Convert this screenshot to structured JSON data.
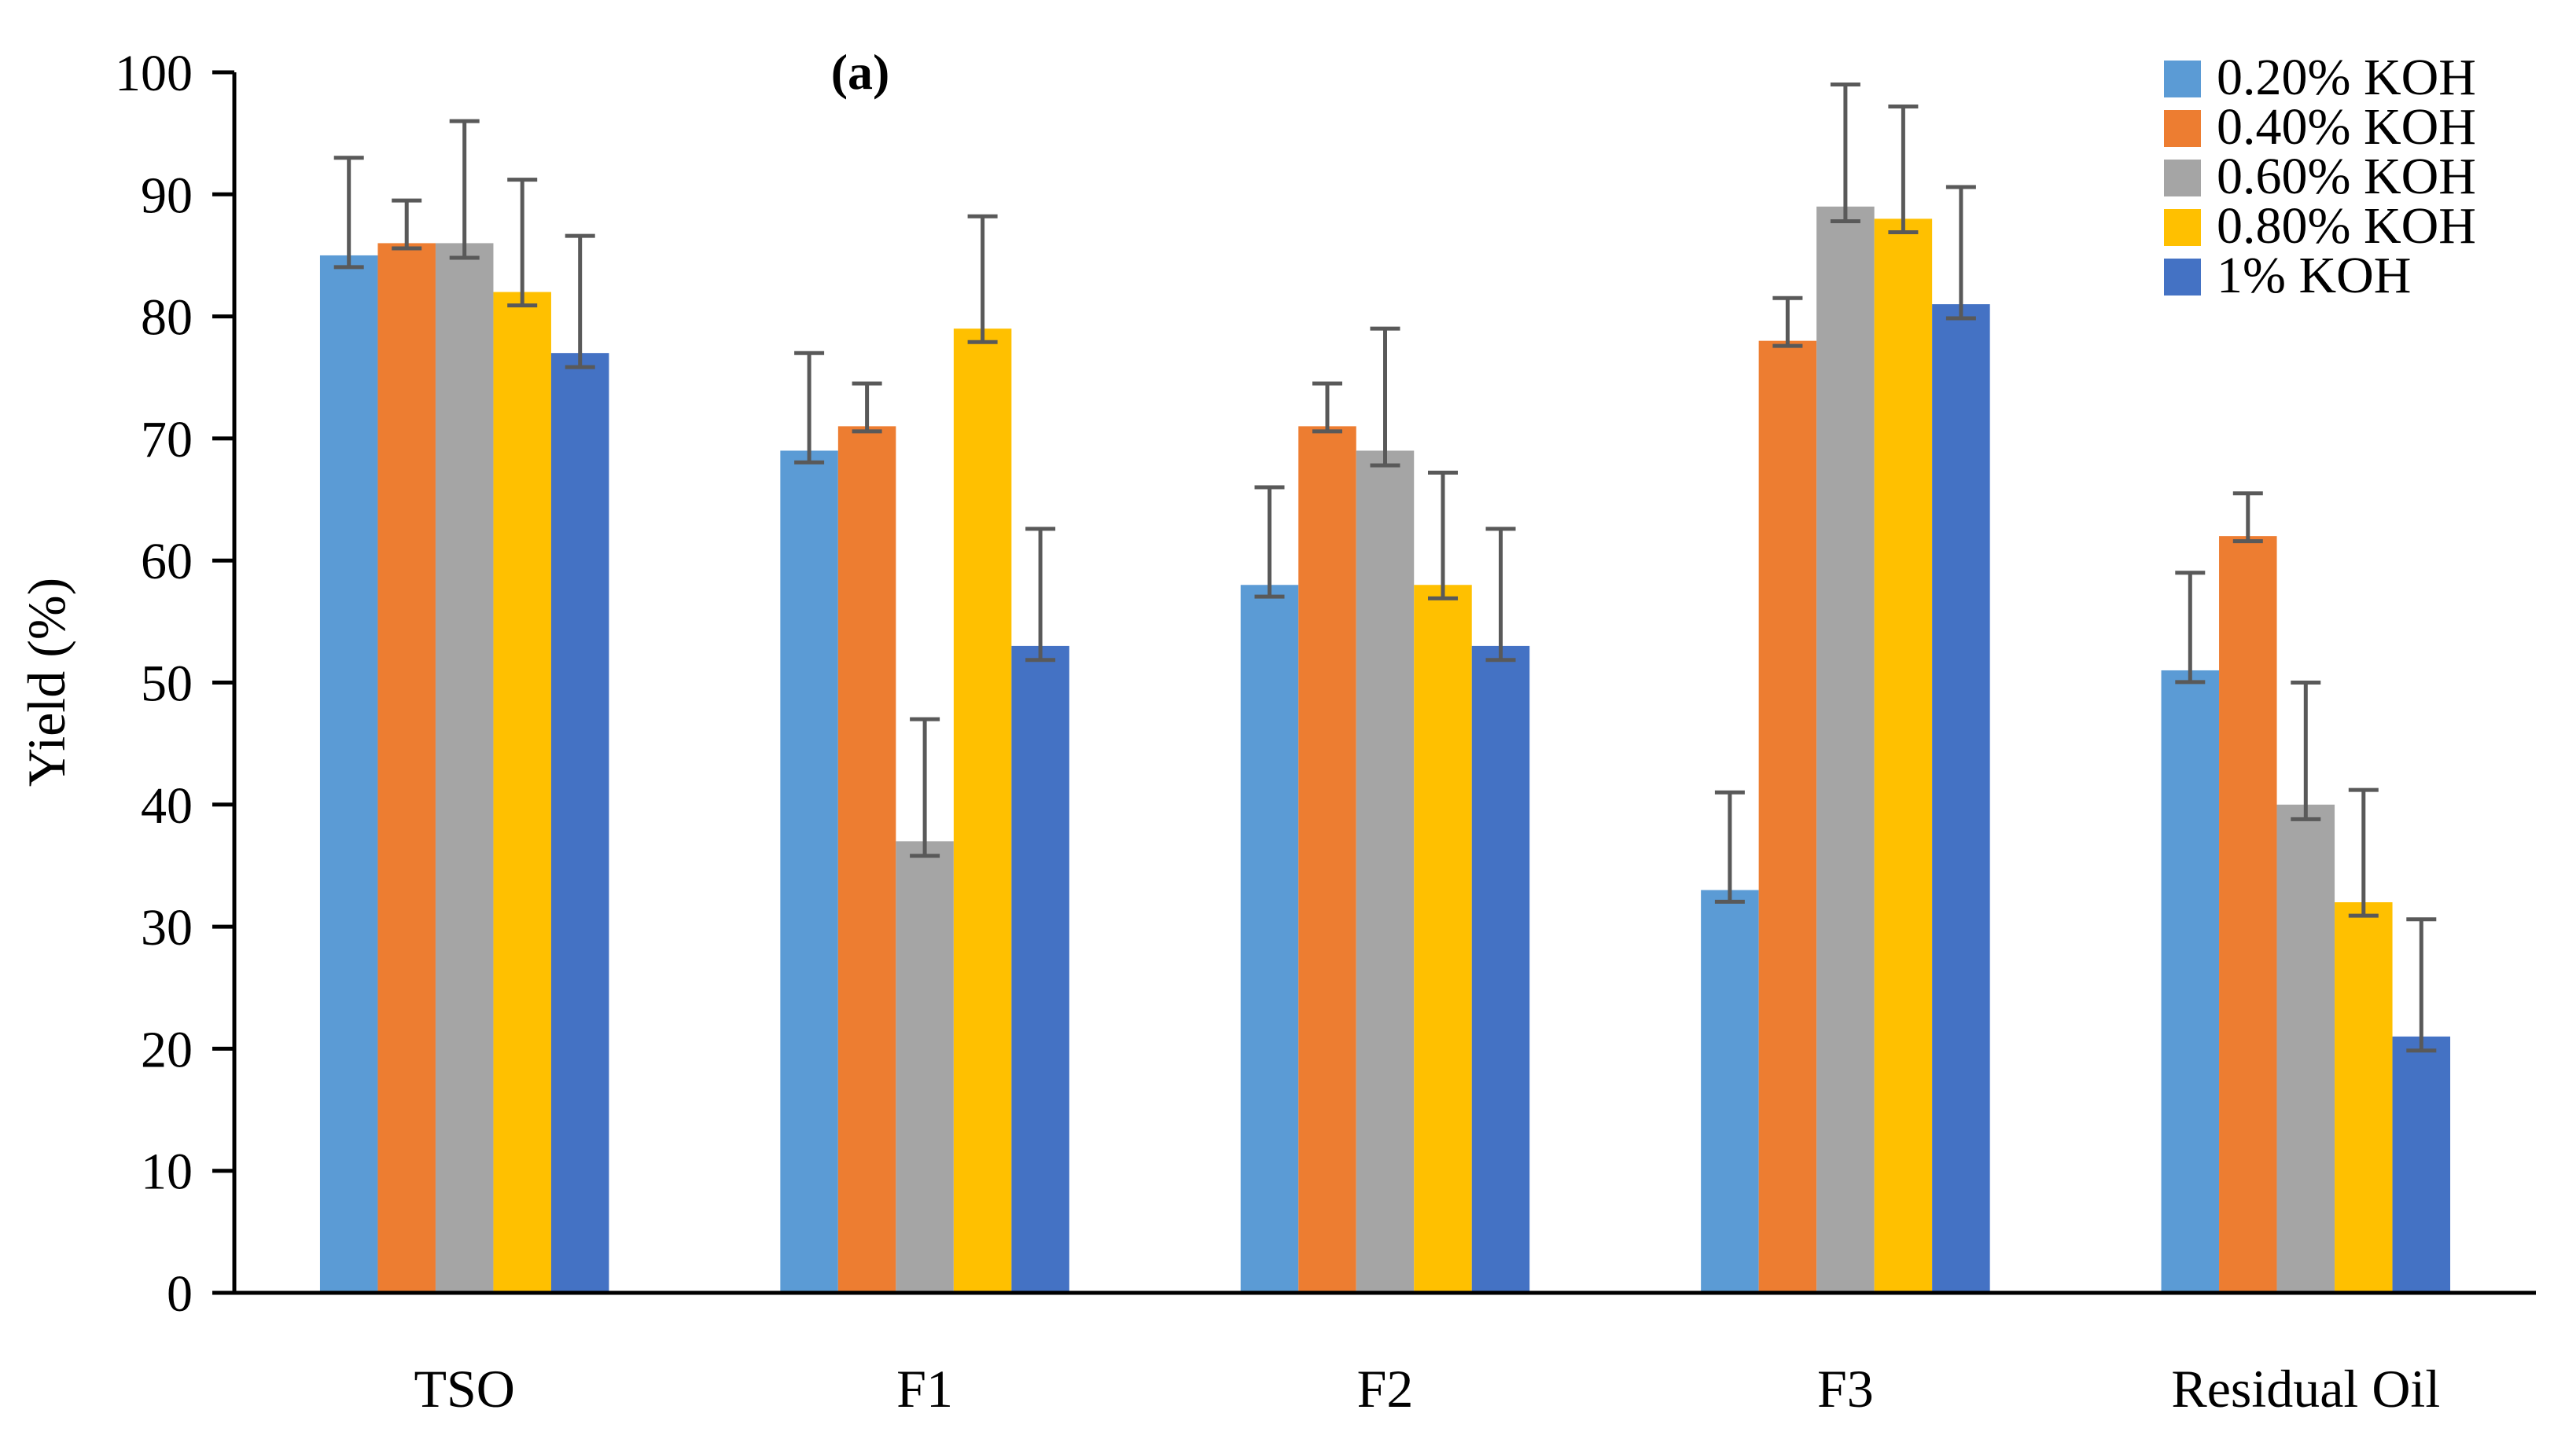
{
  "chart_data": {
    "type": "bar",
    "title": "",
    "panel_label": "(a)",
    "xlabel": "",
    "ylabel": "Yield (%)",
    "ylim": [
      0,
      100
    ],
    "yticks": [
      0,
      10,
      20,
      30,
      40,
      50,
      60,
      70,
      80,
      90,
      100
    ],
    "grid": false,
    "legend_position": "top-right",
    "categories": [
      "TSO",
      "F1",
      "F2",
      "F3",
      "Residual Oil"
    ],
    "series": [
      {
        "name": "0.20% KOH",
        "color": "#5B9BD5",
        "values": [
          85,
          69,
          58,
          33,
          51
        ],
        "errors": [
          8,
          8,
          8,
          8,
          8
        ]
      },
      {
        "name": "0.40% KOH",
        "color": "#ED7D31",
        "values": [
          86,
          71,
          71,
          78,
          62
        ],
        "errors": [
          3.5,
          3.5,
          3.5,
          3.5,
          3.5
        ]
      },
      {
        "name": "0.60% KOH",
        "color": "#A5A5A5",
        "values": [
          86,
          37,
          69,
          89,
          40
        ],
        "errors": [
          10,
          10,
          10,
          10,
          10
        ]
      },
      {
        "name": "0.80% KOH",
        "color": "#FFC000",
        "values": [
          82,
          79,
          58,
          88,
          32
        ],
        "errors": [
          9.2,
          9.2,
          9.2,
          9.2,
          9.2
        ]
      },
      {
        "name": "1% KOH",
        "color": "#4472C4",
        "values": [
          77,
          53,
          53,
          81,
          21
        ],
        "errors": [
          9.6,
          9.6,
          9.6,
          9.6,
          9.6
        ]
      }
    ]
  }
}
